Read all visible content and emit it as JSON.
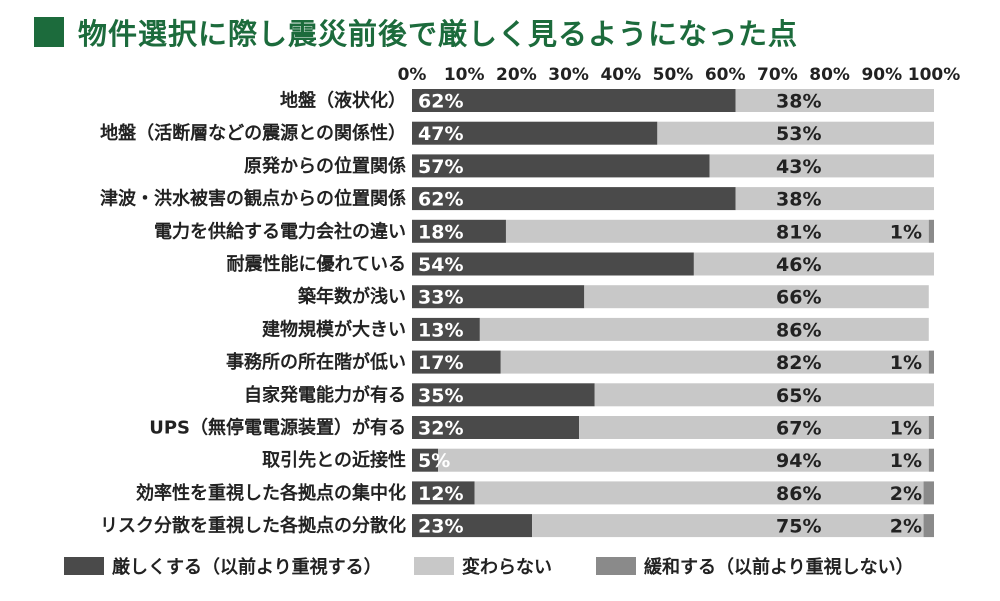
{
  "title": "物件選択に際し震災前後で厳しく見るようになった点",
  "colors": {
    "title_green": "#1c6b3c",
    "dark": "#4a4a4a",
    "light": "#c8c8c8",
    "mid": "#8a8a8a"
  },
  "chart_data": {
    "type": "bar",
    "orientation": "horizontal",
    "stacked": true,
    "title": "物件選択に際し震災前後で厳しく見るようになった点",
    "xlim": [
      0,
      100
    ],
    "x_ticks": [
      "0%",
      "10%",
      "20%",
      "30%",
      "40%",
      "50%",
      "60%",
      "70%",
      "80%",
      "90%",
      "100%"
    ],
    "legend_position": "bottom",
    "categories": [
      "地盤（液状化）",
      "地盤（活断層などの震源との関係性）",
      "原発からの位置関係",
      "津波・洪水被害の観点からの位置関係",
      "電力を供給する電力会社の違い",
      "耐震性能に優れている",
      "築年数が浅い",
      "建物規模が大きい",
      "事務所の所在階が低い",
      "自家発電能力が有る",
      "UPS（無停電電源装置）が有る",
      "取引先との近接性",
      "効率性を重視した各拠点の集中化",
      "リスク分散を重視した各拠点の分散化"
    ],
    "series": [
      {
        "name": "厳しくする（以前より重視する）",
        "values": [
          62,
          47,
          57,
          62,
          18,
          54,
          33,
          13,
          17,
          35,
          32,
          5,
          12,
          23
        ],
        "labels": [
          "62%",
          "47%",
          "57%",
          "62%",
          "18%",
          "54%",
          "33%",
          "13%",
          "17%",
          "35%",
          "32%",
          "5%",
          "12%",
          "23%"
        ]
      },
      {
        "name": "変わらない",
        "values": [
          38,
          53,
          43,
          38,
          81,
          46,
          66,
          86,
          82,
          65,
          67,
          94,
          86,
          75
        ],
        "labels": [
          "38%",
          "53%",
          "43%",
          "38%",
          "81%",
          "46%",
          "66%",
          "86%",
          "82%",
          "65%",
          "67%",
          "94%",
          "86%",
          "75%"
        ]
      },
      {
        "name": "緩和する（以前より重視しない）",
        "values": [
          0,
          0,
          0,
          0,
          1,
          0,
          0,
          0,
          1,
          0,
          1,
          1,
          2,
          2
        ],
        "labels": [
          "",
          "",
          "",
          "",
          "1%",
          "",
          "",
          "",
          "1%",
          "",
          "1%",
          "1%",
          "2%",
          "2%"
        ]
      }
    ]
  }
}
